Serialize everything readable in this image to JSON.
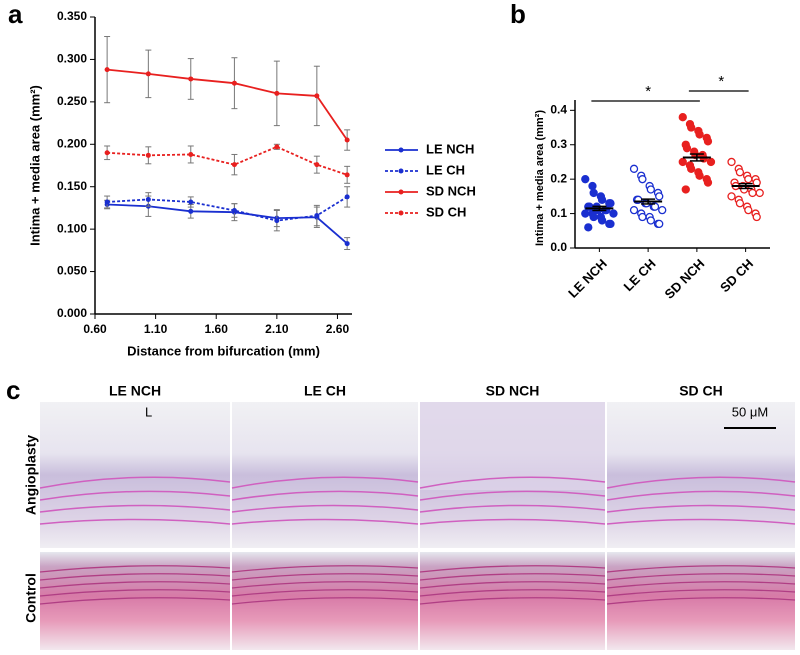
{
  "chart_data": [
    {
      "type": "line",
      "xlabel": "Distance from bifurcation (mm)",
      "ylabel": "Intima + media area (mm²)",
      "x": [
        0.7,
        1.04,
        1.39,
        1.75,
        2.1,
        2.43,
        2.68
      ],
      "xlim": [
        0.6,
        2.72
      ],
      "xticks": [
        {
          "value": 0.6,
          "label": "0.60"
        },
        {
          "value": 1.1,
          "label": "1.10"
        },
        {
          "value": 1.6,
          "label": "1.60"
        },
        {
          "value": 2.1,
          "label": "2.10"
        },
        {
          "value": 2.6,
          "label": "2.60"
        }
      ],
      "ylim": [
        0,
        0.35
      ],
      "yticks": [
        {
          "value": 0,
          "label": "0.000"
        },
        {
          "value": 0.05,
          "label": "0.050"
        },
        {
          "value": 0.1,
          "label": "0.100"
        },
        {
          "value": 0.15,
          "label": "0.150"
        },
        {
          "value": 0.2,
          "label": "0.200"
        },
        {
          "value": 0.25,
          "label": "0.250"
        },
        {
          "value": 0.3,
          "label": "0.300"
        },
        {
          "value": 0.35,
          "label": "0.350"
        }
      ],
      "legend": "right",
      "series": [
        {
          "name": "LE NCH",
          "color": "#1a2fd0",
          "dashed": false,
          "values": [
            0.129,
            0.127,
            0.121,
            0.12,
            0.113,
            0.114,
            0.083
          ],
          "errors": [
            0.005,
            0.012,
            0.008,
            0.01,
            0.01,
            0.012,
            0.007
          ]
        },
        {
          "name": "LE CH",
          "color": "#1a2fd0",
          "dashed": true,
          "values": [
            0.132,
            0.135,
            0.132,
            0.122,
            0.11,
            0.116,
            0.138
          ],
          "errors": [
            0.007,
            0.008,
            0.006,
            0.008,
            0.012,
            0.012,
            0.012
          ]
        },
        {
          "name": "SD NCH",
          "color": "#e8201f",
          "dashed": false,
          "values": [
            0.288,
            0.283,
            0.277,
            0.272,
            0.26,
            0.257,
            0.205
          ],
          "errors": [
            0.039,
            0.028,
            0.024,
            0.03,
            0.038,
            0.035,
            0.012
          ]
        },
        {
          "name": "SD CH",
          "color": "#e8201f",
          "dashed": true,
          "values": [
            0.19,
            0.187,
            0.188,
            0.176,
            0.197,
            0.176,
            0.164
          ],
          "errors": [
            0.008,
            0.01,
            0.01,
            0.012,
            0.003,
            0.01,
            0.01
          ]
        }
      ]
    },
    {
      "type": "dot",
      "ylabel": "Intima + media area  (mm²)",
      "categories": [
        "LE NCH",
        "LE CH",
        "SD NCH",
        "SD CH"
      ],
      "colors": [
        "#1a2fd0",
        "#1a2fd0",
        "#e8201f",
        "#e8201f"
      ],
      "filled": [
        true,
        false,
        true,
        false
      ],
      "points": [
        [
          0.2,
          0.18,
          0.16,
          0.15,
          0.14,
          0.13,
          0.13,
          0.12,
          0.12,
          0.12,
          0.11,
          0.11,
          0.11,
          0.1,
          0.1,
          0.1,
          0.09,
          0.09,
          0.08,
          0.07,
          0.07,
          0.06
        ],
        [
          0.23,
          0.21,
          0.2,
          0.18,
          0.17,
          0.16,
          0.15,
          0.14,
          0.14,
          0.13,
          0.13,
          0.12,
          0.12,
          0.11,
          0.11,
          0.1,
          0.09,
          0.09,
          0.08,
          0.07,
          0.07
        ],
        [
          0.38,
          0.36,
          0.35,
          0.34,
          0.33,
          0.32,
          0.31,
          0.3,
          0.29,
          0.28,
          0.27,
          0.27,
          0.26,
          0.25,
          0.25,
          0.24,
          0.23,
          0.22,
          0.21,
          0.2,
          0.19,
          0.17
        ],
        [
          0.25,
          0.23,
          0.22,
          0.21,
          0.2,
          0.2,
          0.19,
          0.19,
          0.18,
          0.18,
          0.17,
          0.17,
          0.16,
          0.16,
          0.15,
          0.14,
          0.13,
          0.12,
          0.11,
          0.1,
          0.09
        ]
      ],
      "means": [
        0.115,
        0.135,
        0.263,
        0.18
      ],
      "sems": [
        0.006,
        0.007,
        0.01,
        0.007
      ],
      "ylim": [
        0,
        0.43
      ],
      "yticks": [
        {
          "value": 0,
          "label": "0.0"
        },
        0.1,
        0.2,
        0.3,
        0.4
      ],
      "annotations": [
        "*",
        "*"
      ]
    }
  ],
  "figure": {
    "panel_labels": [
      "a",
      "b",
      "c"
    ],
    "histology": {
      "columns": [
        "LE NCH",
        "LE CH",
        "SD NCH",
        "SD CH"
      ],
      "rows": [
        "Angioplasty",
        "Control"
      ],
      "lumen_label": "L",
      "scale_bar": "50 μM"
    }
  }
}
